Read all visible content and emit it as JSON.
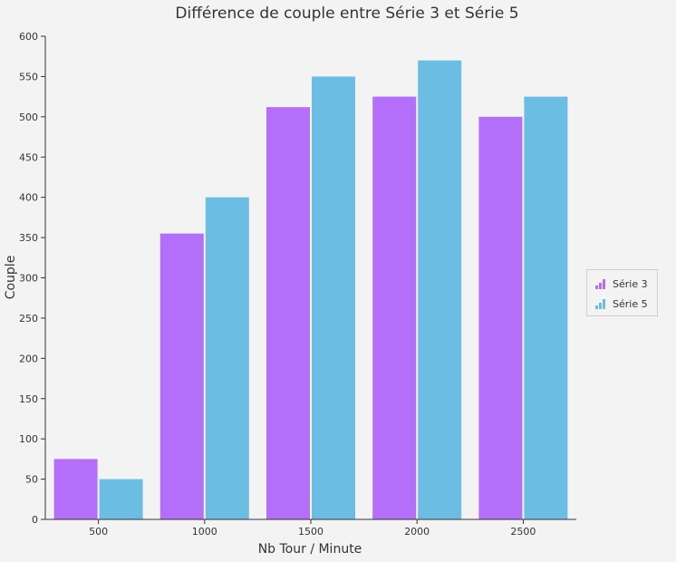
{
  "chart_data": {
    "type": "bar",
    "title": "Différence de couple entre Série 3 et Série 5",
    "xlabel": "Nb Tour / Minute",
    "ylabel": "Couple",
    "categories": [
      "500",
      "1000",
      "1500",
      "2000",
      "2500"
    ],
    "series": [
      {
        "name": "Série 3",
        "values": [
          75,
          355,
          512,
          525,
          500
        ],
        "color": "#b36ffa"
      },
      {
        "name": "Série 5",
        "values": [
          50,
          400,
          550,
          570,
          525
        ],
        "color": "#6bbde3"
      }
    ],
    "ylim": [
      0,
      600
    ],
    "yticks": [
      0,
      50,
      100,
      150,
      200,
      250,
      300,
      350,
      400,
      450,
      500,
      550,
      600
    ],
    "grid": false,
    "legend_position": "right"
  }
}
